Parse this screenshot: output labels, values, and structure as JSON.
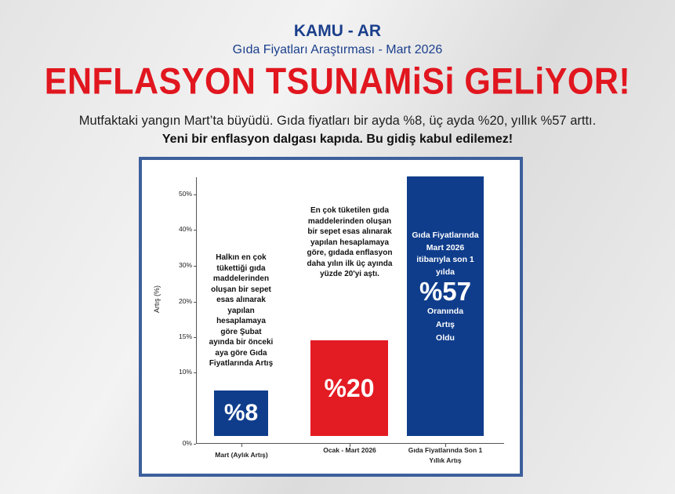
{
  "header": {
    "org": "KAMU - AR",
    "subtitle": "Gıda Fiyatları Araştırması - Mart 2026",
    "headline": "ENFLASYON TSUNAMiSi GELiYOR!",
    "summary": "Mutfaktaki yangın Mart’ta büyüdü.  Gıda fiyatları bir ayda %8, üç ayda %20, yıllık %57 arttı.",
    "warning": "Yeni bir enflasyon dalgası kapıda. Bu gidiş kabul edilemez!"
  },
  "colors": {
    "blue": "#0f3d8c",
    "red": "#e31b23",
    "headline_red": "#e1161f",
    "frame": "#3d5f9c"
  },
  "chart_data": {
    "type": "bar",
    "ylabel": "Artış (%)",
    "yticks": [
      "0%",
      "10%",
      "15%",
      "20%",
      "30%",
      "40%",
      "50%"
    ],
    "categories": [
      "Mart (Aylık Artış)",
      "Ocak - Mart 2026",
      "Gıda Fiyatlarında Son 1 Yıllık Artış"
    ],
    "values": [
      8,
      20,
      57
    ],
    "bar_labels": [
      "%8",
      "%20",
      "%57"
    ],
    "bar_colors": [
      "#0f3d8c",
      "#e31b23",
      "#0f3d8c"
    ],
    "annotations": [
      "Halkın en çok tükettiği gıda maddelerinden oluşan bir sepet esas alınarak yapılan hesaplamaya göre Şubat ayında bir önceki aya göre Gıda Fiyatlarında Artış",
      "En çok tüketilen gıda maddelerinden oluşan bir sepet esas alınarak yapılan hesaplamaya göre, gıdada enflasyon daha yılın ilk üç ayında yüzde 20'yi aştı.",
      "Gıda Fiyatlarında Mart 2026 itibarıyla son 1 yılda"
    ],
    "bar3_suffix": "Oranında Artış Oldu",
    "grid": false
  }
}
